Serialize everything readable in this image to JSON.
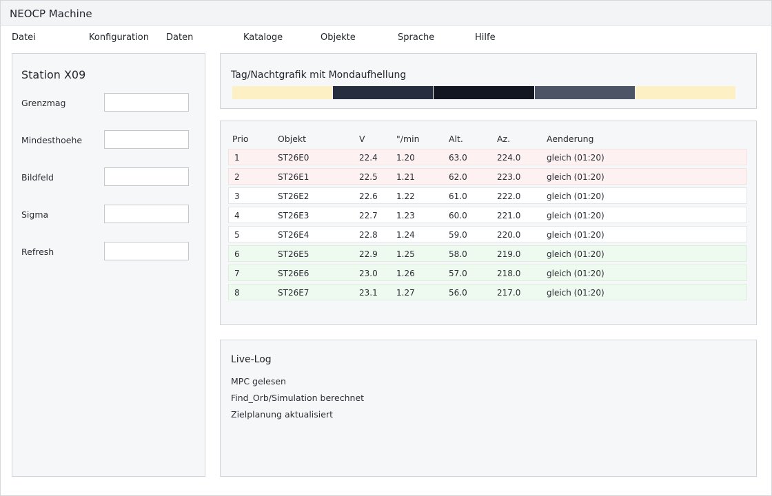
{
  "window": {
    "title": "NEOCP Machine"
  },
  "menu": [
    "Datei",
    "Konfiguration",
    "Daten",
    "Kataloge",
    "Objekte",
    "Sprache",
    "Hilfe"
  ],
  "station": {
    "title": "Station X09",
    "fields": [
      {
        "label": "Grenzmag",
        "value": ""
      },
      {
        "label": "Mindesthoehe",
        "value": ""
      },
      {
        "label": "Bildfeld",
        "value": ""
      },
      {
        "label": "Sigma",
        "value": ""
      },
      {
        "label": "Refresh",
        "value": ""
      }
    ]
  },
  "daynight": {
    "title": "Tag/Nachtgrafik mit Mondaufhellung",
    "segments": [
      "#fdf0c4",
      "#262d3f",
      "#121620",
      "#4c5465",
      "#fdf0c4"
    ]
  },
  "table": {
    "headers": [
      "Prio",
      "Objekt",
      "V",
      "\"/min",
      "Alt.",
      "Az.",
      "Aenderung"
    ],
    "rows": [
      {
        "status": "red",
        "cells": [
          "1",
          "ST26E0",
          "22.4",
          "1.20",
          "63.0",
          "224.0",
          "gleich (01:20)"
        ]
      },
      {
        "status": "red",
        "cells": [
          "2",
          "ST26E1",
          "22.5",
          "1.21",
          "62.0",
          "223.0",
          "gleich (01:20)"
        ]
      },
      {
        "status": "white",
        "cells": [
          "3",
          "ST26E2",
          "22.6",
          "1.22",
          "61.0",
          "222.0",
          "gleich (01:20)"
        ]
      },
      {
        "status": "white",
        "cells": [
          "4",
          "ST26E3",
          "22.7",
          "1.23",
          "60.0",
          "221.0",
          "gleich (01:20)"
        ]
      },
      {
        "status": "white",
        "cells": [
          "5",
          "ST26E4",
          "22.8",
          "1.24",
          "59.0",
          "220.0",
          "gleich (01:20)"
        ]
      },
      {
        "status": "green",
        "cells": [
          "6",
          "ST26E5",
          "22.9",
          "1.25",
          "58.0",
          "219.0",
          "gleich (01:20)"
        ]
      },
      {
        "status": "green",
        "cells": [
          "7",
          "ST26E6",
          "23.0",
          "1.26",
          "57.0",
          "218.0",
          "gleich (01:20)"
        ]
      },
      {
        "status": "green",
        "cells": [
          "8",
          "ST26E7",
          "23.1",
          "1.27",
          "56.0",
          "217.0",
          "gleich (01:20)"
        ]
      }
    ]
  },
  "log": {
    "title": "Live-Log",
    "lines": [
      "MPC gelesen",
      "Find_Orb/Simulation berechnet",
      "Zielplanung aktualisiert"
    ]
  }
}
